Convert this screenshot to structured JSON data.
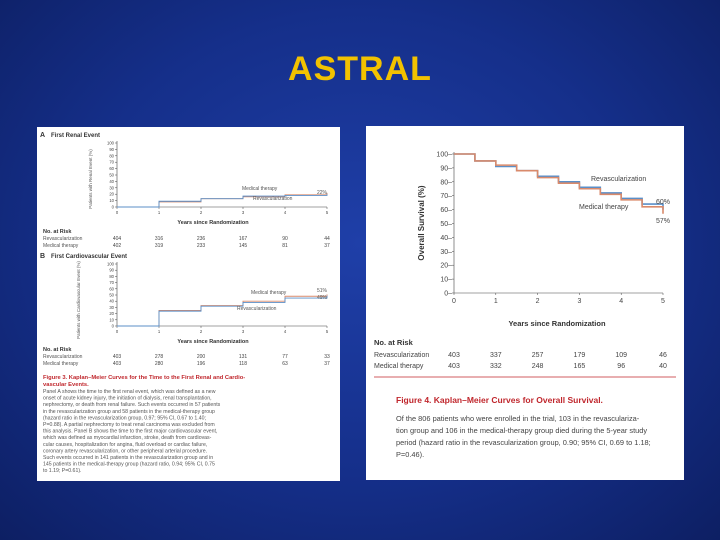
{
  "slide": {
    "title": "ASTRAL",
    "colors": {
      "background": "#152f8a",
      "title": "#f2c200",
      "revasc_line": "#5b8fc7",
      "medical_line": "#d98a6b",
      "caption_red": "#c0272d"
    }
  },
  "left_figure": {
    "panel_a": {
      "label": "A",
      "title": "First Renal Event",
      "ylabel": "Patients with Renal Event (%)",
      "xlabel": "Years since Randomization",
      "series_labels": [
        "Medical therapy",
        "Revascularization"
      ],
      "end_value_label": "22%",
      "risk_title": "No. at Risk",
      "risk_rows": [
        {
          "label": "Revascularization",
          "values": [
            "404",
            "316",
            "236",
            "167",
            "90",
            "44"
          ]
        },
        {
          "label": "Medical therapy",
          "values": [
            "402",
            "319",
            "233",
            "145",
            "81",
            "37"
          ]
        }
      ]
    },
    "panel_b": {
      "label": "B",
      "title": "First Cardiovascular Event",
      "ylabel": "Patients with Cardiovascular Event (%)",
      "xlabel": "Years since Randomization",
      "series_labels": [
        "Medical therapy",
        "Revascularization"
      ],
      "end_value_labels": [
        "51%",
        "49%"
      ],
      "risk_title": "No. at Risk",
      "risk_rows": [
        {
          "label": "Revascularization",
          "values": [
            "403",
            "278",
            "200",
            "131",
            "77",
            "33"
          ]
        },
        {
          "label": "Medical therapy",
          "values": [
            "403",
            "280",
            "196",
            "118",
            "63",
            "37"
          ]
        }
      ]
    },
    "caption_title": "Figure 3. Kaplan–Meier Curves for the Time to the First Renal and Cardiovascular Events.",
    "caption_lines": [
      "Panel A shows the time to the first renal event, which was defined as a new",
      "onset of acute kidney injury, the initiation of dialysis, renal transplantation,",
      "nephrectomy, or death from renal failure. Such events occurred in 57 patients",
      "in the revascularization group and 58 patients in the medical-therapy group",
      "(hazard ratio in the revascularization group, 0.97; 95% CI, 0.67 to 1.40;",
      "P=0.88). A partial nephrectomy to treat renal carcinoma was excluded from",
      "this analysis. Panel B shows the time to the first major cardiovascular event,",
      "which was defined as myocardial infarction, stroke, death from cardiovas-",
      "cular causes, hospitalization for angina, fluid overload or cardiac failure,",
      "coronary artery revascularization, or other peripheral arterial procedure.",
      "Such events occurred in 141 patients in the revascularization group and in",
      "145 patients in the medical-therapy group (hazard ratio, 0.94; 95% CI, 0.75",
      "to 1.19; P=0.61)."
    ]
  },
  "chart_data": [
    {
      "type": "line",
      "title": "First Renal Event",
      "xlabel": "Years since Randomization",
      "ylabel": "Patients with Renal Event (%)",
      "x": [
        0,
        1,
        2,
        3,
        4,
        5
      ],
      "xlim": [
        0,
        5
      ],
      "ylim": [
        0,
        100
      ],
      "yticks": [
        0,
        10,
        20,
        30,
        40,
        50,
        60,
        70,
        80,
        90,
        100
      ],
      "series": [
        {
          "name": "Medical therapy",
          "values": [
            0,
            8,
            13,
            16,
            19,
            22
          ]
        },
        {
          "name": "Revascularization",
          "values": [
            0,
            9,
            13,
            17,
            18,
            20
          ]
        }
      ]
    },
    {
      "type": "line",
      "title": "First Cardiovascular Event",
      "xlabel": "Years since Randomization",
      "ylabel": "Patients with Cardiovascular Event (%)",
      "x": [
        0,
        1,
        2,
        3,
        4,
        5
      ],
      "xlim": [
        0,
        5
      ],
      "ylim": [
        0,
        100
      ],
      "yticks": [
        0,
        10,
        20,
        30,
        40,
        50,
        60,
        70,
        80,
        90,
        100
      ],
      "series": [
        {
          "name": "Medical therapy",
          "values": [
            0,
            25,
            33,
            40,
            48,
            51
          ]
        },
        {
          "name": "Revascularization",
          "values": [
            0,
            24,
            32,
            38,
            45,
            49
          ]
        }
      ]
    },
    {
      "type": "line",
      "title": "",
      "xlabel": "Years since Randomization",
      "ylabel": "Overall Survival (%)",
      "x": [
        0,
        0.5,
        1,
        1.5,
        2,
        2.5,
        3,
        3.5,
        4,
        4.5,
        5
      ],
      "xticks": [
        0,
        1,
        2,
        3,
        4,
        5
      ],
      "xlim": [
        0,
        5
      ],
      "ylim": [
        0,
        100
      ],
      "yticks": [
        0,
        10,
        20,
        30,
        40,
        50,
        60,
        70,
        80,
        90,
        100
      ],
      "series": [
        {
          "name": "Revascularization",
          "values": [
            100,
            95,
            91,
            88,
            84,
            80,
            76,
            72,
            68,
            64,
            60
          ]
        },
        {
          "name": "Medical therapy",
          "values": [
            100,
            95,
            92,
            88,
            83,
            79,
            75,
            71,
            67,
            62,
            57
          ]
        }
      ],
      "end_labels": [
        "60%",
        "57%"
      ],
      "risk_title": "No. at Risk",
      "risk_rows": [
        {
          "label": "Revascularization",
          "values": [
            "403",
            "337",
            "257",
            "179",
            "109",
            "46"
          ]
        },
        {
          "label": "Medical therapy",
          "values": [
            "403",
            "332",
            "248",
            "165",
            "96",
            "40"
          ]
        }
      ]
    }
  ],
  "right_figure": {
    "caption_title": "Figure 4. Kaplan–Meier Curves for Overall Survival.",
    "caption_lines": [
      "Of the 806 patients who were enrolled in the trial, 103 in the revasculariza-",
      "tion group and 106 in the medical-therapy group died during the 5-year study",
      "period (hazard ratio in the revascularization group, 0.90; 95% CI, 0.69 to 1.18;",
      "P=0.46)."
    ]
  }
}
